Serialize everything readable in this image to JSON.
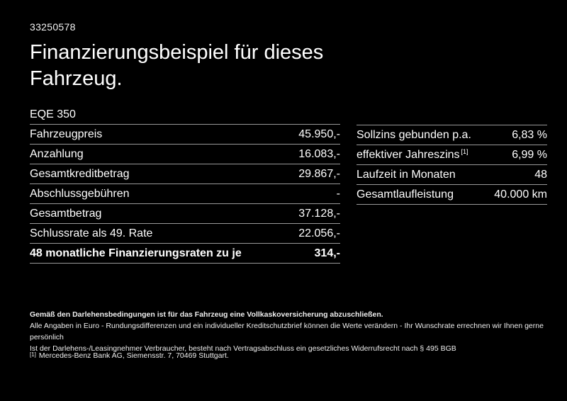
{
  "document_id": "33250578",
  "title": "Finanzierungsbeispiel für dieses Fahrzeug.",
  "left_table": {
    "header": "EQE 350",
    "rows": [
      {
        "label": "Fahrzeugpreis",
        "value": "45.950,-"
      },
      {
        "label": "Anzahlung",
        "value": "16.083,-"
      },
      {
        "label": "Gesamtkreditbetrag",
        "value": "29.867,-"
      },
      {
        "label": "Abschlussgebühren",
        "value": "-"
      },
      {
        "label": "Gesamtbetrag",
        "value": "37.128,-"
      },
      {
        "label": "Schlussrate als 49. Rate",
        "value": "22.056,-"
      }
    ],
    "total_row": {
      "label": "48 monatliche Finanzierungsraten zu je",
      "value": "314,-"
    }
  },
  "right_table": {
    "rows": [
      {
        "label": "Sollzins gebunden p.a.",
        "value": "6,83 %"
      },
      {
        "label": "effektiver Jahreszins",
        "sup": "[1]",
        "value": "6,99 %"
      },
      {
        "label": "Laufzeit in Monaten",
        "value": "48"
      },
      {
        "label": "Gesamtlaufleistung",
        "value": "40.000 km"
      }
    ]
  },
  "disclaimer": {
    "bold_line": "Gemäß den Darlehensbedingungen ist für das Fahrzeug eine Vollkaskoversicherung abzuschließen.",
    "line2": "Alle Angaben in Euro - Rundungsdifferenzen und ein individueller Kreditschutzbrief können die Werte verändern - Ihr Wunschrate errechnen wir Ihnen gerne persönlich",
    "line3": "Ist der Darlehens-/Leasingnehmer Verbraucher, besteht nach Vertragsabschluss ein gesetzliches Widerrufsrecht nach § 495 BGB",
    "footnote_marker": "[1]",
    "footnote_text": "Mercedes-Benz Bank AG, Siemensstr. 7, 70469 Stuttgart."
  },
  "colors": {
    "background": "#000000",
    "text": "#ffffff",
    "divider": "#999999"
  }
}
